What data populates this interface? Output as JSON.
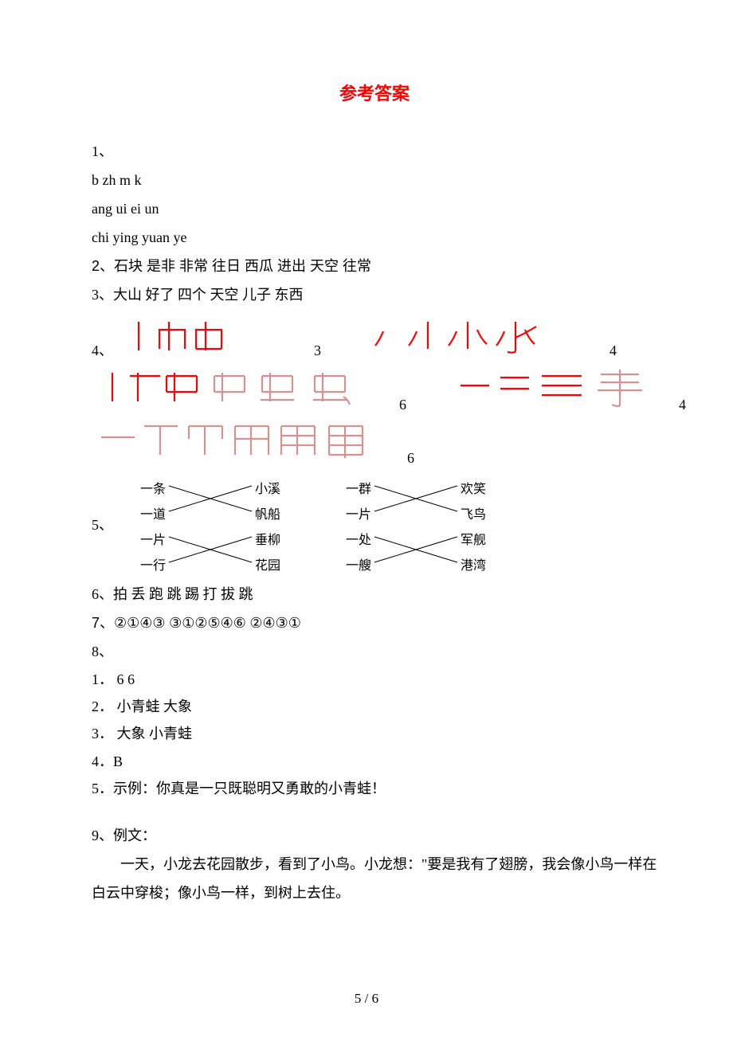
{
  "title": "参考答案",
  "q1": {
    "label": "1、",
    "row1": "b  zh  m   k",
    "row2": "ang  ui  ei  un",
    "row3": "chi  ying  yuan  ye"
  },
  "q2": {
    "label": "2、",
    "text": "石块  是非   非常  往日  西瓜   进出  天空   往常"
  },
  "q3": {
    "label": "3、",
    "text": "大山    好了   四个    天空    儿子    东西"
  },
  "q4": {
    "label": "4、",
    "strokes": {
      "shan_count": "3",
      "huo_count": "4",
      "chong_count": "6",
      "shou_count": "4",
      "er_count": "6"
    },
    "colors": {
      "stroke_color": "#ff0000",
      "mix_color": "#d89090"
    }
  },
  "q5": {
    "label": "5、",
    "left_block": {
      "left": [
        "一条",
        "一道",
        "一片",
        "一行"
      ],
      "right": [
        "小溪",
        "帆船",
        "垂柳",
        "花园"
      ],
      "lines": [
        [
          0,
          1
        ],
        [
          1,
          0
        ],
        [
          2,
          3
        ],
        [
          3,
          2
        ]
      ]
    },
    "right_block": {
      "left": [
        "一群",
        "一片",
        "一处",
        "一艘"
      ],
      "right": [
        "欢笑",
        "飞鸟",
        "军舰",
        "港湾"
      ],
      "lines": [
        [
          0,
          1
        ],
        [
          1,
          0
        ],
        [
          2,
          3
        ],
        [
          3,
          2
        ]
      ]
    }
  },
  "q6": {
    "label": "6、",
    "text": "拍       丢       跑       跳       踢       打       拔       跳"
  },
  "q7": {
    "label": "7、",
    "text": "②①④③       ③①②⑤④⑥       ②④③①"
  },
  "q8": {
    "label": "8、",
    "items": {
      "l1": "1．       6       6",
      "l2": "2．       小青蛙       大象",
      "l3": "3．       大象       小青蛙",
      "l4": "4．B",
      "l5": "5．示例：你真是一只既聪明又勇敢的小青蛙！"
    }
  },
  "q9": {
    "label": "9、",
    "intro": "例文：",
    "body": "一天，小龙去花园散步，看到了小鸟。小龙想：\"要是我有了翅膀，我会像小鸟一样在白云中穿梭；像小鸟一样，到树上去住。"
  },
  "page_num": "5 / 6",
  "layout": {
    "match_line_color": "#000000",
    "match_line_width": 1
  }
}
